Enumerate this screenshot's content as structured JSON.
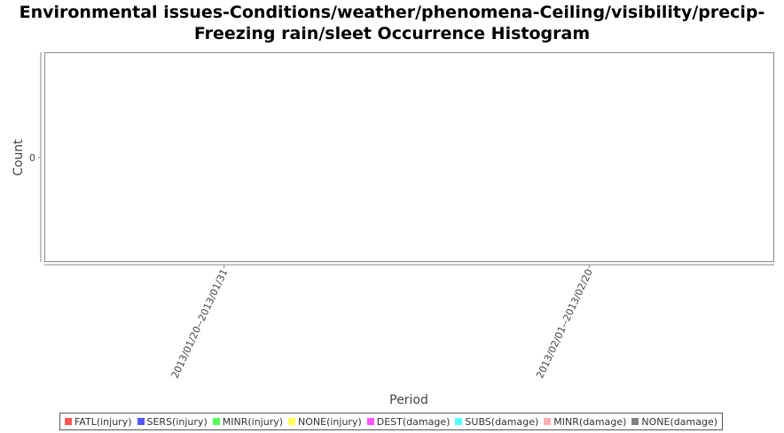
{
  "title_lines": [
    "Environmental issues-Conditions/weather/phenomena-Ceiling/visibility/precip-",
    "Freezing rain/sleet Occurrence Histogram"
  ],
  "chart_data": {
    "type": "bar",
    "title": "Environmental issues-Conditions/weather/phenomena-Ceiling/visibility/precip-Freezing rain/sleet Occurrence Histogram",
    "xlabel": "Period",
    "ylabel": "Count",
    "categories": [
      "2013/01/20--2013/01/31",
      "2013/02/01--2013/02/20"
    ],
    "y_ticks": [
      "0"
    ],
    "grid": false,
    "legend_position": "bottom",
    "series": [
      {
        "name": "FATL(injury)",
        "color": "#ff5555",
        "values": [
          0,
          0
        ]
      },
      {
        "name": "SERS(injury)",
        "color": "#5555ff",
        "values": [
          0,
          0
        ]
      },
      {
        "name": "MINR(injury)",
        "color": "#55ff55",
        "values": [
          0,
          0
        ]
      },
      {
        "name": "NONE(injury)",
        "color": "#ffff55",
        "values": [
          0,
          0
        ]
      },
      {
        "name": "DEST(damage)",
        "color": "#ff55ff",
        "values": [
          0,
          0
        ]
      },
      {
        "name": "SUBS(damage)",
        "color": "#55ffff",
        "values": [
          0,
          0
        ]
      },
      {
        "name": "MINR(damage)",
        "color": "#ffafaf",
        "values": [
          0,
          0
        ]
      },
      {
        "name": "NONE(damage)",
        "color": "#808080",
        "values": [
          0,
          0
        ]
      }
    ]
  }
}
